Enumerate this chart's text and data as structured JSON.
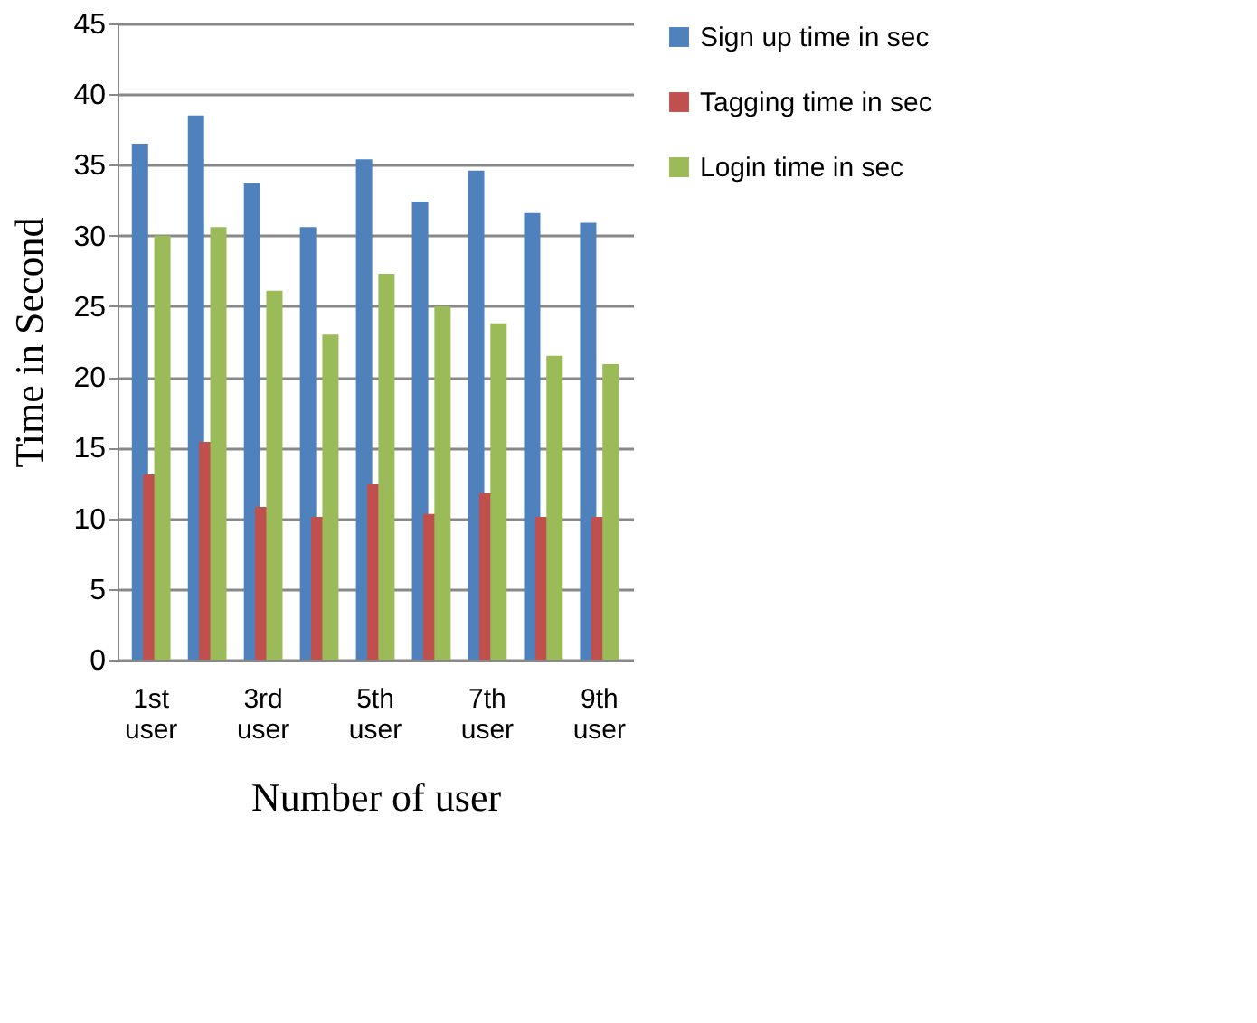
{
  "chart_data": {
    "type": "bar",
    "xlabel": "Number of user",
    "ylabel": "Time in Second",
    "categories": [
      "1st user",
      null,
      "3rd user",
      null,
      "5th user",
      null,
      "7th user",
      null,
      "9th user"
    ],
    "series": [
      {
        "name": "Sign up time in sec",
        "color": "#4f81bd",
        "values": [
          36.5,
          38.5,
          33.7,
          30.6,
          35.4,
          32.4,
          34.6,
          31.6,
          30.9
        ]
      },
      {
        "name": "Tagging time in sec",
        "color": "#c0504d",
        "values": [
          13.1,
          15.4,
          10.8,
          10.1,
          12.4,
          10.3,
          11.8,
          10.1,
          10.1
        ]
      },
      {
        "name": "Login time in sec",
        "color": "#9bbb59",
        "values": [
          30,
          30.6,
          26.1,
          23,
          27.3,
          25,
          23.8,
          21.5,
          20.9
        ]
      }
    ],
    "ylim": [
      0,
      45
    ],
    "yticks": [
      0,
      5,
      10,
      15,
      20,
      25,
      30,
      35,
      40,
      45
    ],
    "grid": "y",
    "legend": "right"
  }
}
